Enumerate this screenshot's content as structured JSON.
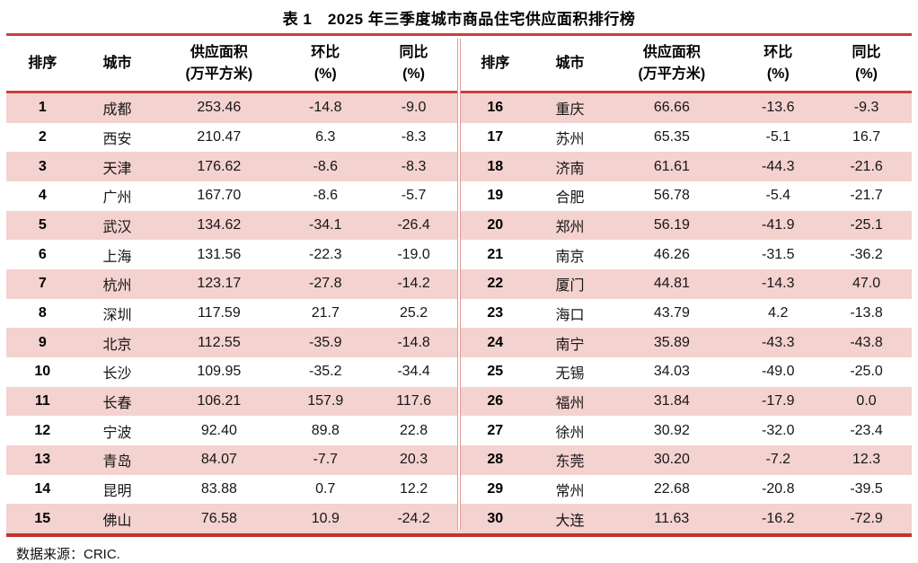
{
  "title": "表 1　2025 年三季度城市商品住宅供应面积排行榜",
  "source_note": "数据来源：CRIC.",
  "colors": {
    "rule_red": "#c9403c",
    "stripe_pink": "#f4d2cf",
    "divider_pink": "#e59a95"
  },
  "table": {
    "columns": {
      "rank": {
        "label": "排序"
      },
      "city": {
        "label": "城市"
      },
      "area": {
        "label": "供应面积",
        "sub": "(万平方米)"
      },
      "mom": {
        "label": "环比",
        "sub": "(%)"
      },
      "yoy": {
        "label": "同比",
        "sub": "(%)"
      }
    },
    "rows": [
      {
        "rank": "1",
        "city": "成都",
        "area": "253.46",
        "mom": "-14.8",
        "yoy": "-9.0"
      },
      {
        "rank": "2",
        "city": "西安",
        "area": "210.47",
        "mom": "6.3",
        "yoy": "-8.3"
      },
      {
        "rank": "3",
        "city": "天津",
        "area": "176.62",
        "mom": "-8.6",
        "yoy": "-8.3"
      },
      {
        "rank": "4",
        "city": "广州",
        "area": "167.70",
        "mom": "-8.6",
        "yoy": "-5.7"
      },
      {
        "rank": "5",
        "city": "武汉",
        "area": "134.62",
        "mom": "-34.1",
        "yoy": "-26.4"
      },
      {
        "rank": "6",
        "city": "上海",
        "area": "131.56",
        "mom": "-22.3",
        "yoy": "-19.0"
      },
      {
        "rank": "7",
        "city": "杭州",
        "area": "123.17",
        "mom": "-27.8",
        "yoy": "-14.2"
      },
      {
        "rank": "8",
        "city": "深圳",
        "area": "117.59",
        "mom": "21.7",
        "yoy": "25.2"
      },
      {
        "rank": "9",
        "city": "北京",
        "area": "112.55",
        "mom": "-35.9",
        "yoy": "-14.8"
      },
      {
        "rank": "10",
        "city": "长沙",
        "area": "109.95",
        "mom": "-35.2",
        "yoy": "-34.4"
      },
      {
        "rank": "11",
        "city": "长春",
        "area": "106.21",
        "mom": "157.9",
        "yoy": "117.6"
      },
      {
        "rank": "12",
        "city": "宁波",
        "area": "92.40",
        "mom": "89.8",
        "yoy": "22.8"
      },
      {
        "rank": "13",
        "city": "青岛",
        "area": "84.07",
        "mom": "-7.7",
        "yoy": "20.3"
      },
      {
        "rank": "14",
        "city": "昆明",
        "area": "83.88",
        "mom": "0.7",
        "yoy": "12.2"
      },
      {
        "rank": "15",
        "city": "佛山",
        "area": "76.58",
        "mom": "10.9",
        "yoy": "-24.2"
      },
      {
        "rank": "16",
        "city": "重庆",
        "area": "66.66",
        "mom": "-13.6",
        "yoy": "-9.3"
      },
      {
        "rank": "17",
        "city": "苏州",
        "area": "65.35",
        "mom": "-5.1",
        "yoy": "16.7"
      },
      {
        "rank": "18",
        "city": "济南",
        "area": "61.61",
        "mom": "-44.3",
        "yoy": "-21.6"
      },
      {
        "rank": "19",
        "city": "合肥",
        "area": "56.78",
        "mom": "-5.4",
        "yoy": "-21.7"
      },
      {
        "rank": "20",
        "city": "郑州",
        "area": "56.19",
        "mom": "-41.9",
        "yoy": "-25.1"
      },
      {
        "rank": "21",
        "city": "南京",
        "area": "46.26",
        "mom": "-31.5",
        "yoy": "-36.2"
      },
      {
        "rank": "22",
        "city": "厦门",
        "area": "44.81",
        "mom": "-14.3",
        "yoy": "47.0"
      },
      {
        "rank": "23",
        "city": "海口",
        "area": "43.79",
        "mom": "4.2",
        "yoy": "-13.8"
      },
      {
        "rank": "24",
        "city": "南宁",
        "area": "35.89",
        "mom": "-43.3",
        "yoy": "-43.8"
      },
      {
        "rank": "25",
        "city": "无锡",
        "area": "34.03",
        "mom": "-49.0",
        "yoy": "-25.0"
      },
      {
        "rank": "26",
        "city": "福州",
        "area": "31.84",
        "mom": "-17.9",
        "yoy": "0.0"
      },
      {
        "rank": "27",
        "city": "徐州",
        "area": "30.92",
        "mom": "-32.0",
        "yoy": "-23.4"
      },
      {
        "rank": "28",
        "city": "东莞",
        "area": "30.20",
        "mom": "-7.2",
        "yoy": "12.3"
      },
      {
        "rank": "29",
        "city": "常州",
        "area": "22.68",
        "mom": "-20.8",
        "yoy": "-39.5"
      },
      {
        "rank": "30",
        "city": "大连",
        "area": "11.63",
        "mom": "-16.2",
        "yoy": "-72.9"
      }
    ]
  }
}
